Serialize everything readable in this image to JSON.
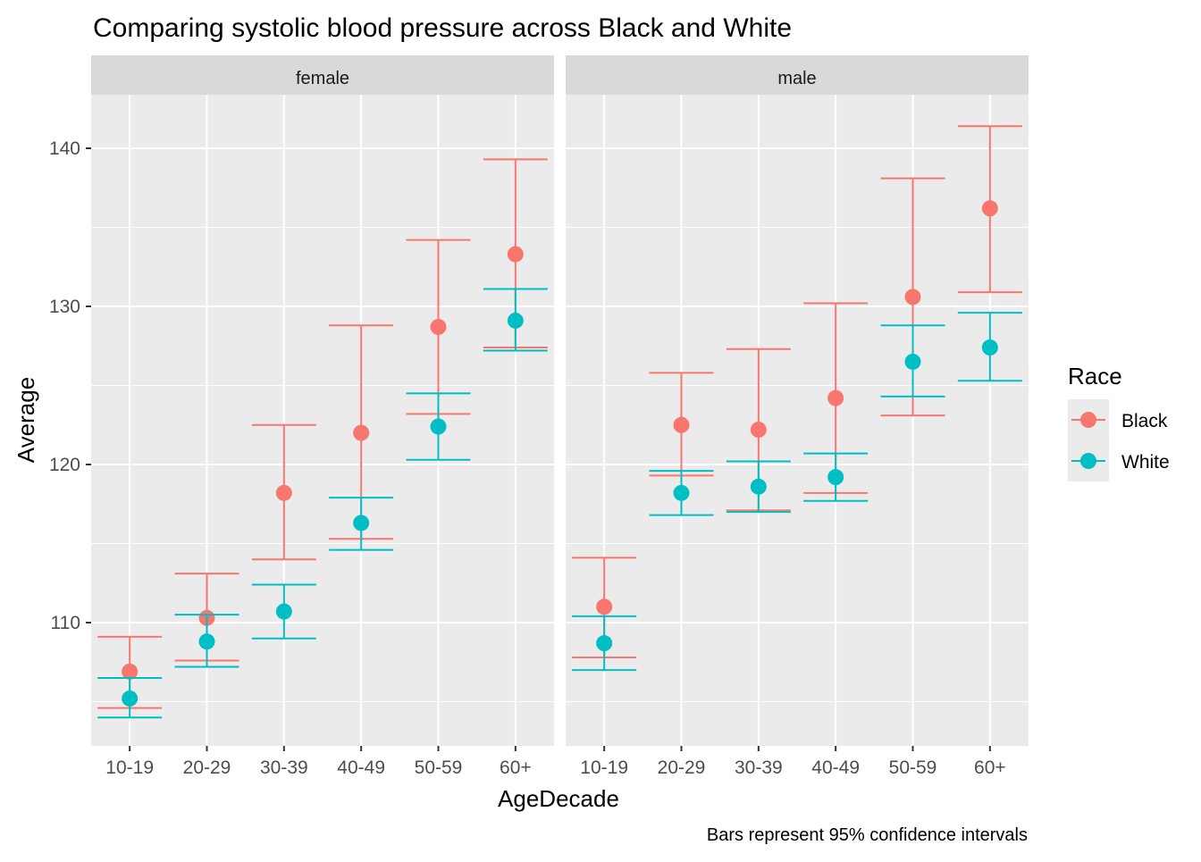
{
  "chart_data": {
    "type": "errorbar-point",
    "title": "Comparing systolic blood pressure across Black and White",
    "xlabel": "AgeDecade",
    "ylabel": "Average",
    "caption": "Bars represent 95% confidence intervals",
    "ylim": [
      103.8,
      143.8
    ],
    "yticks": [
      110,
      120,
      130,
      140
    ],
    "grid": true,
    "legend": {
      "title": "Race",
      "placement": "right",
      "entries": [
        "Black",
        "White"
      ]
    },
    "categories": [
      "10-19",
      "20-29",
      "30-39",
      "40-49",
      "50-59",
      "60+"
    ],
    "colors": {
      "Black": "#F8766D",
      "White": "#00BFC4"
    },
    "facets": [
      {
        "label": "female",
        "series": [
          {
            "name": "Black",
            "values": [
              106.9,
              110.3,
              118.2,
              122.0,
              128.7,
              133.3
            ],
            "lower": [
              104.6,
              107.6,
              114.0,
              115.3,
              123.2,
              127.4
            ],
            "upper": [
              109.1,
              113.1,
              122.5,
              128.8,
              134.2,
              139.3
            ]
          },
          {
            "name": "White",
            "values": [
              105.2,
              108.8,
              110.7,
              116.3,
              122.4,
              129.1
            ],
            "lower": [
              104.0,
              107.2,
              109.0,
              114.6,
              120.3,
              127.2
            ],
            "upper": [
              106.5,
              110.5,
              112.4,
              117.9,
              124.5,
              131.1
            ]
          }
        ]
      },
      {
        "label": "male",
        "series": [
          {
            "name": "Black",
            "values": [
              111.0,
              122.5,
              122.2,
              124.2,
              130.6,
              136.2
            ],
            "lower": [
              107.8,
              119.3,
              117.1,
              118.2,
              123.1,
              130.9
            ],
            "upper": [
              114.1,
              125.8,
              127.3,
              130.2,
              138.1,
              141.4
            ]
          },
          {
            "name": "White",
            "values": [
              108.7,
              118.2,
              118.6,
              119.2,
              126.5,
              127.4
            ],
            "lower": [
              107.0,
              116.8,
              117.0,
              117.7,
              124.3,
              125.3
            ],
            "upper": [
              110.4,
              119.6,
              120.2,
              120.7,
              128.8,
              129.6
            ]
          }
        ]
      }
    ]
  }
}
